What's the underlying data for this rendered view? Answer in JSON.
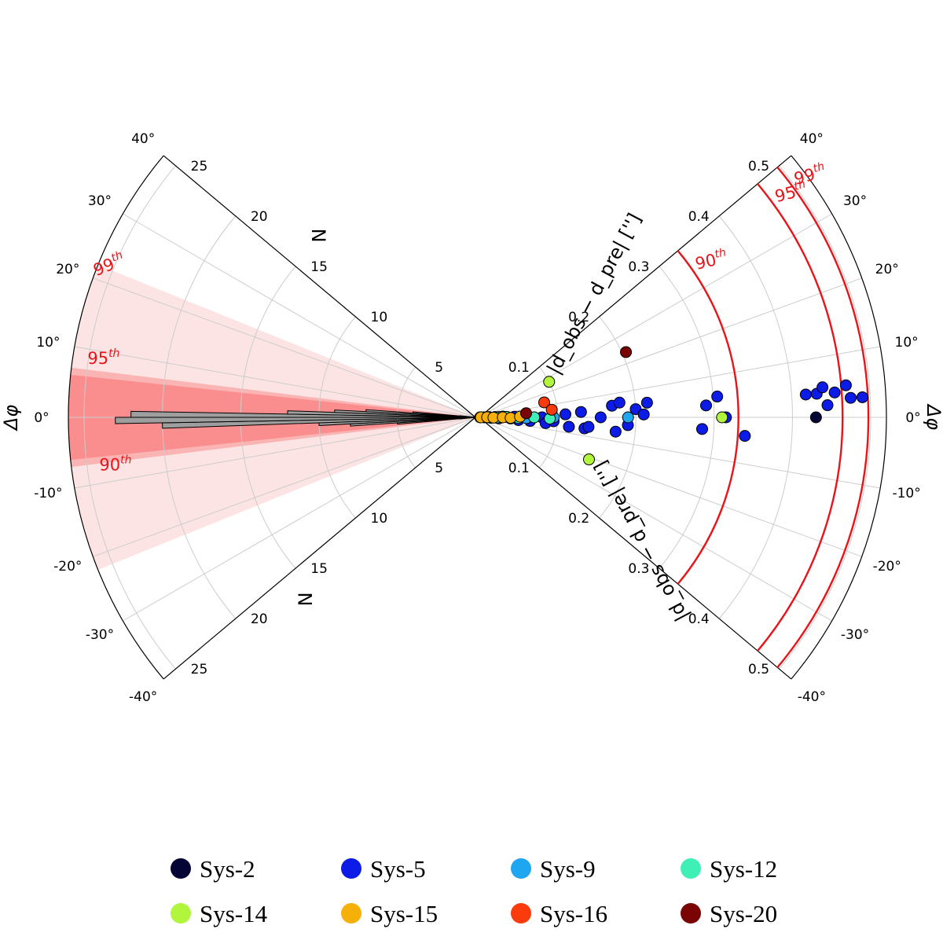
{
  "chart_data": [
    {
      "type": "polar-histogram",
      "panel": "left",
      "theta_range": [
        -40,
        40
      ],
      "theta_ticks": [
        -40,
        -30,
        -20,
        -10,
        0,
        10,
        20,
        30,
        40
      ],
      "theta_ticklabels": [
        "-40°",
        "-30°",
        "-20°",
        "-10°",
        "0°",
        "10°",
        "20°",
        "30°",
        "40°"
      ],
      "theta_label": "Δφ",
      "r_label": "N",
      "r_range": [
        0,
        26
      ],
      "r_ticks": [
        5,
        10,
        15,
        20,
        25
      ],
      "r_ticklabels": [
        "5",
        "10",
        "15",
        "20",
        "25"
      ],
      "bins_edges": [
        -6,
        -5,
        -4,
        -3,
        -2,
        -1,
        0,
        1,
        2,
        3,
        4,
        5,
        6
      ],
      "counts": [
        1,
        5,
        8,
        10,
        20,
        23,
        22,
        12,
        9,
        7,
        4,
        1
      ],
      "bar_color": "#9e9e9e",
      "percentile_bands": [
        {
          "label": "90",
          "suffix": "th",
          "range": [
            -6,
            6
          ],
          "color": "#fa8e8e"
        },
        {
          "label": "95",
          "suffix": "th",
          "range": [
            -7,
            7
          ],
          "color": "#fbb4b4"
        },
        {
          "label": "99",
          "suffix": "th",
          "range": [
            -22,
            22
          ],
          "color": "#fde4e4"
        }
      ]
    },
    {
      "type": "polar-scatter",
      "panel": "right",
      "theta_range": [
        -40,
        40
      ],
      "theta_ticks": [
        -40,
        -30,
        -20,
        -10,
        0,
        10,
        20,
        30,
        40
      ],
      "theta_ticklabels": [
        "-40°",
        "-30°",
        "-20°",
        "-10°",
        "0°",
        "10°",
        "20°",
        "30°",
        "40°"
      ],
      "theta_label": "Δφ",
      "r_label": "|d_obs − d_pre| ['']",
      "r_range": [
        0,
        0.52
      ],
      "r_ticks": [
        0.1,
        0.2,
        0.3,
        0.4,
        0.5
      ],
      "r_ticklabels": [
        "0.1",
        "0.2",
        "0.3",
        "0.4",
        "0.5"
      ],
      "percentile_arcs": [
        {
          "label": "90",
          "suffix": "th",
          "r": 0.331
        },
        {
          "label": "95",
          "suffix": "th",
          "r": 0.464
        },
        {
          "label": "99",
          "suffix": "th",
          "r": 0.497
        }
      ],
      "arc_color": "#e8141a",
      "series": [
        {
          "name": "Sys-2",
          "color": "#050535",
          "points": [
            [
              0.43,
              0
            ],
            [
              0.001,
              0
            ]
          ]
        },
        {
          "name": "Sys-5",
          "color": "#0d1be6",
          "points": [
            [
              0.006,
              0
            ],
            [
              0.012,
              2
            ],
            [
              0.015,
              -2
            ],
            [
              0.02,
              1
            ],
            [
              0.025,
              -3
            ],
            [
              0.03,
              2
            ],
            [
              0.04,
              -2
            ],
            [
              0.045,
              1
            ],
            [
              0.05,
              -4
            ],
            [
              0.06,
              3
            ],
            [
              0.065,
              -4
            ],
            [
              0.08,
              0
            ],
            [
              0.085,
              -5
            ],
            [
              0.095,
              -3
            ],
            [
              0.11,
              2
            ],
            [
              0.115,
              -6
            ],
            [
              0.13,
              3
            ],
            [
              0.135,
              -6
            ],
            [
              0.14,
              -5
            ],
            [
              0.155,
              0
            ],
            [
              0.17,
              5
            ],
            [
              0.175,
              -6
            ],
            [
              0.18,
              6
            ],
            [
              0.19,
              -3
            ],
            [
              0.2,
              3
            ],
            [
              0.21,
              1
            ],
            [
              0.215,
              5
            ],
            [
              0.285,
              -3
            ],
            [
              0.305,
              5
            ],
            [
              0.29,
              3
            ],
            [
              0.315,
              0
            ],
            [
              0.34,
              -4
            ],
            [
              0.418,
              4
            ],
            [
              0.432,
              4
            ],
            [
              0.44,
              5
            ],
            [
              0.445,
              2
            ],
            [
              0.455,
              4
            ],
            [
              0.47,
              5
            ],
            [
              0.475,
              3
            ],
            [
              0.49,
              3
            ]
          ]
        },
        {
          "name": "Sys-9",
          "color": "#1ea6f0",
          "points": [
            [
              0.025,
              1
            ],
            [
              0.06,
              -1
            ],
            [
              0.095,
              0
            ],
            [
              0.19,
              0
            ]
          ]
        },
        {
          "name": "Sys-12",
          "color": "#3ef0b6",
          "points": [
            [
              0.01,
              0
            ],
            [
              0.022,
              -1
            ],
            [
              0.035,
              1
            ],
            [
              0.05,
              -1
            ],
            [
              0.07,
              0
            ],
            [
              0.09,
              -1
            ]
          ]
        },
        {
          "name": "Sys-14",
          "color": "#b2f53d",
          "points": [
            [
              0.1,
              27
            ],
            [
              0.15,
              -21
            ],
            [
              0.31,
              0
            ]
          ]
        },
        {
          "name": "Sys-15",
          "color": "#f5b10a",
          "points": [
            [
              0.002,
              0
            ],
            [
              0.01,
              1
            ],
            [
              0.018,
              -1
            ],
            [
              0.03,
              0
            ],
            [
              0.04,
              -1
            ],
            [
              0.052,
              1
            ]
          ]
        },
        {
          "name": "Sys-16",
          "color": "#fc3b0c",
          "points": [
            [
              0.085,
              13
            ],
            [
              0.093,
              6
            ]
          ]
        },
        {
          "name": "Sys-20",
          "color": "#7a0303",
          "points": [
            [
              0.06,
              5
            ],
            [
              0.205,
              24
            ]
          ]
        }
      ]
    }
  ],
  "legend": [
    {
      "name": "Sys-2",
      "color": "#050535"
    },
    {
      "name": "Sys-5",
      "color": "#0d1be6"
    },
    {
      "name": "Sys-9",
      "color": "#1ea6f0"
    },
    {
      "name": "Sys-12",
      "color": "#3ef0b6"
    },
    {
      "name": "Sys-14",
      "color": "#b2f53d"
    },
    {
      "name": "Sys-15",
      "color": "#f5b10a"
    },
    {
      "name": "Sys-16",
      "color": "#fc3b0c"
    },
    {
      "name": "Sys-20",
      "color": "#7a0303"
    }
  ]
}
